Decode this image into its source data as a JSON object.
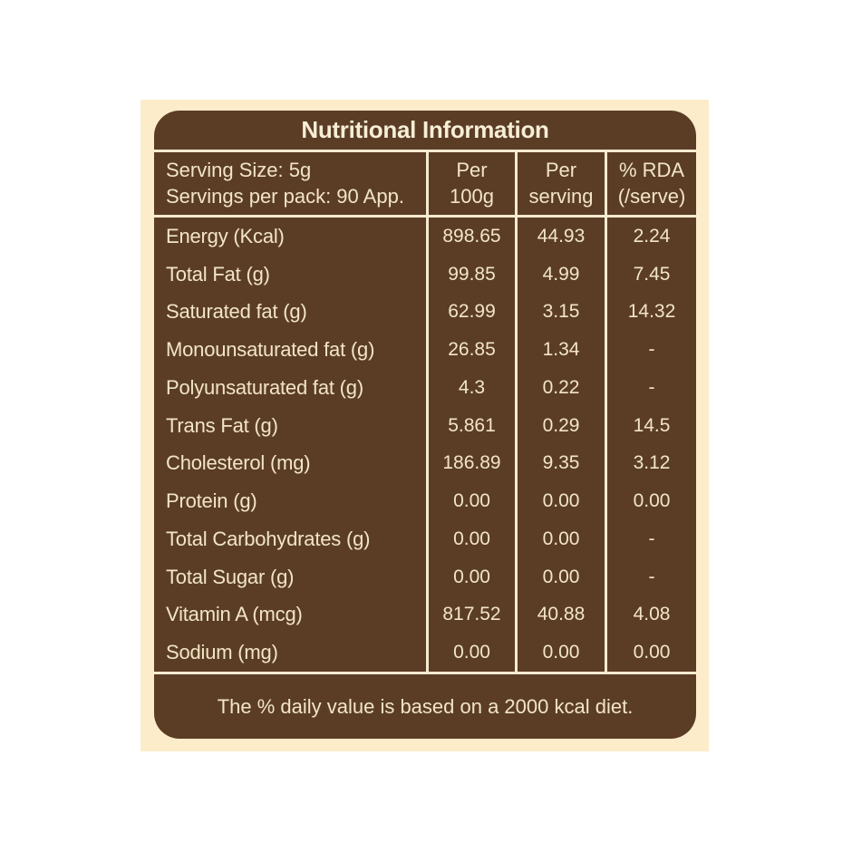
{
  "colors": {
    "page_background": "#ffffff",
    "panel_cream": "#fdecca",
    "card_brown": "#5b3d26",
    "text_cream": "#f2e5c5",
    "line_cream": "#f6ead0"
  },
  "label": {
    "title": "Nutritional Information",
    "serving_info": {
      "line1": "Serving Size: 5g",
      "line2": "Servings per pack: 90 App."
    },
    "columns": [
      {
        "line1": "Per",
        "line2": "100g"
      },
      {
        "line1": "Per",
        "line2": "serving"
      },
      {
        "line1": "% RDA",
        "line2": "(/serve)"
      }
    ],
    "rows": [
      {
        "name": "Energy (Kcal)",
        "per_100g": "898.65",
        "per_serving": "44.93",
        "rda": "2.24"
      },
      {
        "name": "Total Fat (g)",
        "per_100g": "99.85",
        "per_serving": "4.99",
        "rda": "7.45"
      },
      {
        "name": "Saturated fat (g)",
        "per_100g": "62.99",
        "per_serving": "3.15",
        "rda": "14.32"
      },
      {
        "name": "Monounsaturated fat (g)",
        "per_100g": "26.85",
        "per_serving": "1.34",
        "rda": "-"
      },
      {
        "name": "Polyunsaturated fat (g)",
        "per_100g": "4.3",
        "per_serving": "0.22",
        "rda": "-"
      },
      {
        "name": "Trans Fat (g)",
        "per_100g": "5.861",
        "per_serving": "0.29",
        "rda": "14.5"
      },
      {
        "name": "Cholesterol (mg)",
        "per_100g": "186.89",
        "per_serving": "9.35",
        "rda": "3.12"
      },
      {
        "name": "Protein (g)",
        "per_100g": "0.00",
        "per_serving": "0.00",
        "rda": "0.00"
      },
      {
        "name": "Total Carbohydrates (g)",
        "per_100g": "0.00",
        "per_serving": "0.00",
        "rda": "-"
      },
      {
        "name": "Total Sugar (g)",
        "per_100g": "0.00",
        "per_serving": "0.00",
        "rda": "-"
      },
      {
        "name": "Vitamin A (mcg)",
        "per_100g": "817.52",
        "per_serving": "40.88",
        "rda": "4.08"
      },
      {
        "name": "Sodium (mg)",
        "per_100g": "0.00",
        "per_serving": "0.00",
        "rda": "0.00"
      }
    ],
    "footnote": "The % daily value is based on a 2000 kcal diet."
  }
}
